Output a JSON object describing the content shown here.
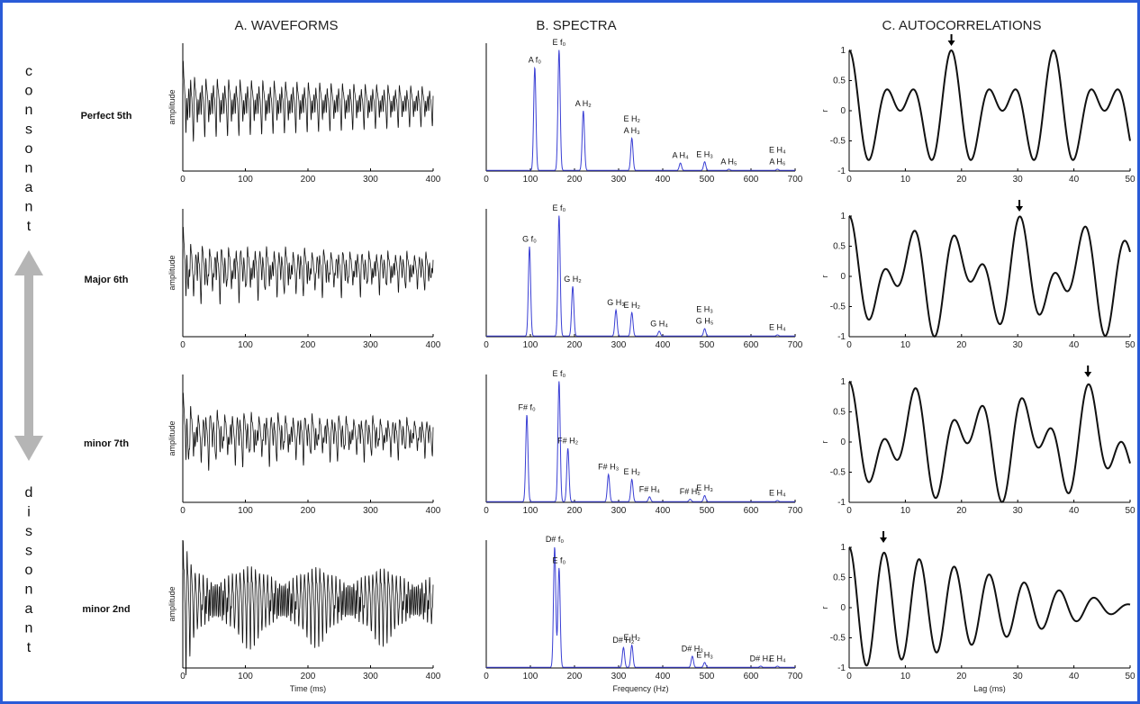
{
  "column_titles": [
    "A. WAVEFORMS",
    "B. SPECTRA",
    "C. AUTOCORRELATIONS"
  ],
  "side_labels": {
    "top": "consonant",
    "bottom": "dissonant",
    "arrow_color": "#b5b5b5"
  },
  "colors": {
    "frame": "#2a5bd7",
    "spectrum_line": "#3a3fd4",
    "trace": "#111111"
  },
  "rows": [
    {
      "label": "Perfect 5th"
    },
    {
      "label": "Major 6th"
    },
    {
      "label": "minor 7th"
    },
    {
      "label": "minor 2nd"
    }
  ],
  "chart_data": [
    {
      "type": "line",
      "panel": "waveforms",
      "ylabel": "amplitude",
      "xlabel": "Time (ms)",
      "xlim": [
        0,
        400
      ],
      "xticks": [
        0,
        100,
        200,
        300,
        400
      ],
      "series": [
        {
          "row": "Perfect 5th",
          "components_hz": [
            110,
            165
          ],
          "envelope": "decay"
        },
        {
          "row": "Major 6th",
          "components_hz": [
            98,
            165
          ],
          "envelope": "decay"
        },
        {
          "row": "minor 7th",
          "components_hz": [
            92.5,
            165
          ],
          "envelope": "decay"
        },
        {
          "row": "minor 2nd",
          "components_hz": [
            155.6,
            165
          ],
          "envelope": "beating"
        }
      ]
    },
    {
      "type": "line",
      "panel": "spectra",
      "xlabel": "Frequency (Hz)",
      "xlim": [
        0,
        700
      ],
      "xticks": [
        0,
        100,
        200,
        300,
        400,
        500,
        600,
        700
      ],
      "rows": [
        {
          "row": "Perfect 5th",
          "peaks": [
            {
              "x": 110,
              "y": 0.83,
              "label": "A f₀"
            },
            {
              "x": 165,
              "y": 0.97,
              "label": "E f₀"
            },
            {
              "x": 220,
              "y": 0.48,
              "label": "A H₂"
            },
            {
              "x": 330,
              "y": 0.26,
              "label": "E H₂\nA H₃"
            },
            {
              "x": 440,
              "y": 0.06,
              "label": "A H₄"
            },
            {
              "x": 495,
              "y": 0.07,
              "label": "E H₃"
            },
            {
              "x": 550,
              "y": 0.01,
              "label": "A H₅"
            },
            {
              "x": 660,
              "y": 0.01,
              "label": "E H₄\nA H₆"
            }
          ]
        },
        {
          "row": "Major 6th",
          "peaks": [
            {
              "x": 98,
              "y": 0.72,
              "label": "G f₀"
            },
            {
              "x": 165,
              "y": 0.97,
              "label": "E f₀"
            },
            {
              "x": 196,
              "y": 0.4,
              "label": "G H₂"
            },
            {
              "x": 294,
              "y": 0.21,
              "label": "G H₃"
            },
            {
              "x": 330,
              "y": 0.19,
              "label": "E H₂"
            },
            {
              "x": 392,
              "y": 0.04,
              "label": "G H₄"
            },
            {
              "x": 495,
              "y": 0.06,
              "label": "E H₃\nG H₅"
            },
            {
              "x": 660,
              "y": 0.01,
              "label": "E H₄"
            }
          ]
        },
        {
          "row": "minor 7th",
          "peaks": [
            {
              "x": 92,
              "y": 0.7,
              "label": "F# f₀"
            },
            {
              "x": 165,
              "y": 0.97,
              "label": "E f₀"
            },
            {
              "x": 185,
              "y": 0.43,
              "label": "F# H₂"
            },
            {
              "x": 277,
              "y": 0.22,
              "label": "F# H₃"
            },
            {
              "x": 330,
              "y": 0.18,
              "label": "E H₂"
            },
            {
              "x": 370,
              "y": 0.04,
              "label": "F# H₄"
            },
            {
              "x": 462,
              "y": 0.02,
              "label": "F# H₅"
            },
            {
              "x": 495,
              "y": 0.05,
              "label": "E H₃"
            },
            {
              "x": 660,
              "y": 0.01,
              "label": "E H₄"
            }
          ]
        },
        {
          "row": "minor 2nd",
          "peaks": [
            {
              "x": 155,
              "y": 0.97,
              "label": "D# f₀"
            },
            {
              "x": 165,
              "y": 0.8,
              "label": "E f₀"
            },
            {
              "x": 311,
              "y": 0.16,
              "label": "D# H₂"
            },
            {
              "x": 330,
              "y": 0.18,
              "label": "E H₂"
            },
            {
              "x": 467,
              "y": 0.09,
              "label": "D# H₃"
            },
            {
              "x": 495,
              "y": 0.04,
              "label": "E H₃"
            },
            {
              "x": 622,
              "y": 0.01,
              "label": "D# H₄"
            },
            {
              "x": 660,
              "y": 0.01,
              "label": "E H₄"
            }
          ]
        }
      ]
    },
    {
      "type": "line",
      "panel": "autocorrelations",
      "ylabel": "r",
      "xlabel": "Lag (ms)",
      "xlim": [
        0,
        50
      ],
      "ylim": [
        -1,
        1
      ],
      "xticks": [
        0,
        10,
        20,
        30,
        40,
        50
      ],
      "yticks": [
        -1,
        -0.5,
        0,
        0.5,
        1
      ],
      "yticklabels": [
        "-1",
        "-0.5",
        "0",
        "0.5",
        "1"
      ],
      "series": [
        {
          "row": "Perfect 5th",
          "components_hz": [
            110,
            165
          ],
          "decay": 0,
          "marker_lag_ms": 18.2
        },
        {
          "row": "Major 6th",
          "components_hz": [
            98,
            165
          ],
          "decay": 0,
          "marker_lag_ms": 30.3
        },
        {
          "row": "minor 7th",
          "components_hz": [
            92.5,
            165
          ],
          "decay": 0,
          "marker_lag_ms": 42.5
        },
        {
          "row": "minor 2nd",
          "components_hz": [
            155.6,
            165
          ],
          "decay": 0.012,
          "marker_lag_ms": 6.1
        }
      ]
    }
  ]
}
